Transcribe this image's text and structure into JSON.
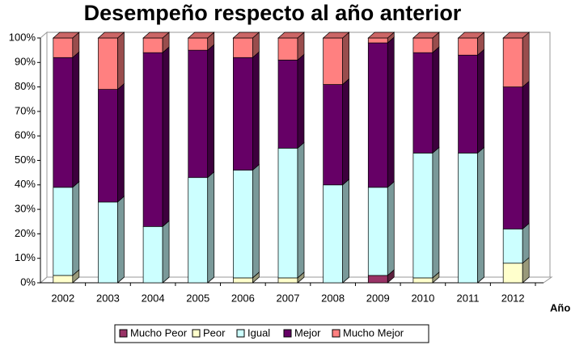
{
  "chart_data": {
    "type": "bar3d_stacked",
    "title": "Desempeño respecto al año anterior",
    "x_label": "Año",
    "categories": [
      "2002",
      "2003",
      "2004",
      "2005",
      "2006",
      "2007",
      "2008",
      "2009",
      "2010",
      "2011",
      "2012"
    ],
    "series": [
      {
        "name": "Mucho Peor",
        "color": "#993366",
        "values": [
          0,
          0,
          0,
          0,
          0,
          0,
          0,
          3,
          0,
          0,
          0
        ]
      },
      {
        "name": "Peor",
        "color": "#ffffcc",
        "values": [
          3,
          0,
          0,
          0,
          2,
          2,
          0,
          0,
          2,
          0,
          8
        ]
      },
      {
        "name": "Igual",
        "color": "#ccffff",
        "values": [
          36,
          33,
          23,
          43,
          44,
          53,
          40,
          36,
          51,
          53,
          14
        ]
      },
      {
        "name": "Mejor",
        "color": "#660066",
        "values": [
          53,
          46,
          71,
          52,
          46,
          36,
          41,
          59,
          41,
          40,
          58
        ]
      },
      {
        "name": "Mucho Mejor",
        "color": "#ff8080",
        "values": [
          8,
          21,
          6,
          5,
          8,
          9,
          19,
          2,
          6,
          7,
          20
        ]
      }
    ],
    "ylim": [
      0,
      100
    ],
    "yticks": [
      {
        "value": 0,
        "label": "0%"
      },
      {
        "value": 10,
        "label": "10%"
      },
      {
        "value": 20,
        "label": "20%"
      },
      {
        "value": 30,
        "label": "30%"
      },
      {
        "value": 40,
        "label": "40%"
      },
      {
        "value": 50,
        "label": "50%"
      },
      {
        "value": 60,
        "label": "60%"
      },
      {
        "value": 70,
        "label": "70%"
      },
      {
        "value": 80,
        "label": "80%"
      },
      {
        "value": 90,
        "label": "90%"
      },
      {
        "value": 100,
        "label": "100%"
      }
    ],
    "legend": "bottom"
  }
}
